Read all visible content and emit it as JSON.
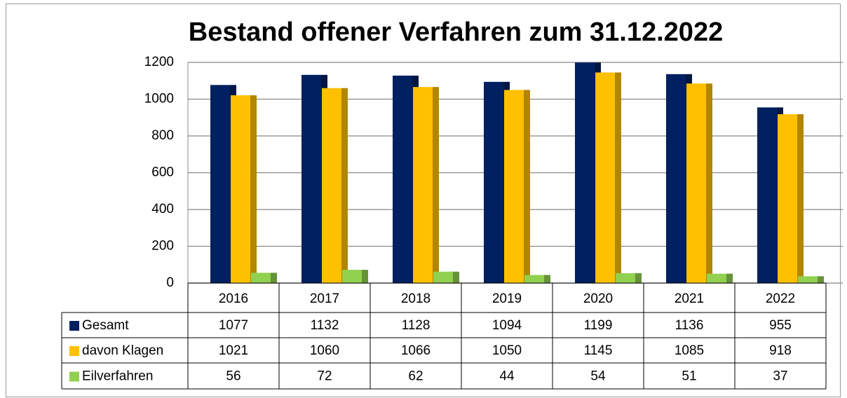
{
  "chart_data": {
    "type": "bar",
    "title": "Bestand offener Verfahren zum 31.12.2022",
    "categories": [
      "2016",
      "2017",
      "2018",
      "2019",
      "2020",
      "2021",
      "2022"
    ],
    "series": [
      {
        "name": "Gesamt",
        "color": "#002060",
        "values": [
          1077,
          1132,
          1128,
          1094,
          1199,
          1136,
          955
        ]
      },
      {
        "name": "davon Klagen",
        "color": "#ffc000",
        "values": [
          1021,
          1060,
          1066,
          1050,
          1145,
          1085,
          918
        ]
      },
      {
        "name": "Eilverfahren",
        "color": "#92d050",
        "values": [
          56,
          72,
          62,
          44,
          54,
          51,
          37
        ]
      }
    ],
    "ylim": [
      0,
      1200
    ],
    "yticks": [
      0,
      200,
      400,
      600,
      800,
      1000,
      1200
    ],
    "grid": true
  }
}
